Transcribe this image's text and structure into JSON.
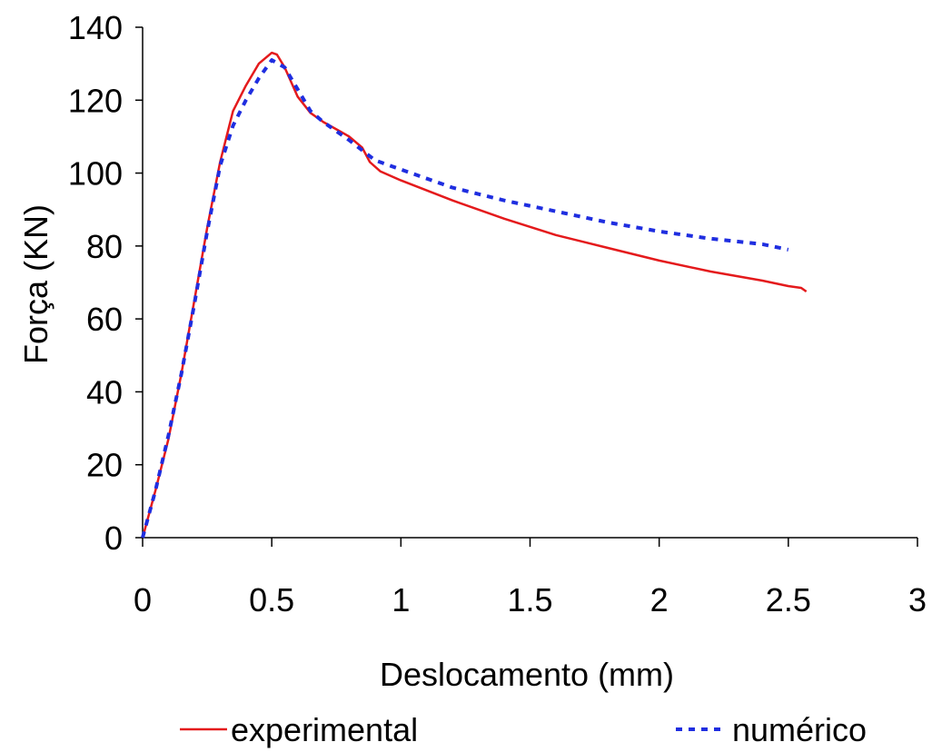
{
  "chart_data": {
    "type": "line",
    "title": "",
    "xlabel": "Deslocamento (mm)",
    "ylabel": "Força (KN)",
    "xlim": [
      0,
      3
    ],
    "ylim": [
      0,
      140
    ],
    "xticks": [
      0,
      0.5,
      1,
      1.5,
      2,
      2.5,
      3
    ],
    "yticks": [
      0,
      20,
      40,
      60,
      80,
      100,
      120,
      140
    ],
    "grid": false,
    "legend_position": "bottom",
    "series": [
      {
        "name": "experimental",
        "color": "#e41a1c",
        "style": "solid",
        "points": [
          [
            0,
            0
          ],
          [
            0.05,
            13
          ],
          [
            0.1,
            27
          ],
          [
            0.15,
            45
          ],
          [
            0.2,
            65
          ],
          [
            0.25,
            85
          ],
          [
            0.3,
            103
          ],
          [
            0.35,
            117
          ],
          [
            0.4,
            124
          ],
          [
            0.45,
            130
          ],
          [
            0.5,
            133
          ],
          [
            0.52,
            132.5
          ],
          [
            0.55,
            129
          ],
          [
            0.6,
            121
          ],
          [
            0.65,
            116.5
          ],
          [
            0.7,
            114
          ],
          [
            0.75,
            112
          ],
          [
            0.8,
            110
          ],
          [
            0.85,
            107
          ],
          [
            0.88,
            103
          ],
          [
            0.92,
            100.5
          ],
          [
            1.0,
            98
          ],
          [
            1.2,
            92.5
          ],
          [
            1.4,
            87.5
          ],
          [
            1.6,
            83
          ],
          [
            1.8,
            79.5
          ],
          [
            2.0,
            76
          ],
          [
            2.2,
            73
          ],
          [
            2.4,
            70.5
          ],
          [
            2.5,
            69
          ],
          [
            2.55,
            68.5
          ],
          [
            2.57,
            67.5
          ]
        ]
      },
      {
        "name": "numérico",
        "color": "#1f2ee0",
        "style": "dotted",
        "points": [
          [
            0,
            0
          ],
          [
            0.05,
            13
          ],
          [
            0.1,
            28
          ],
          [
            0.15,
            45
          ],
          [
            0.2,
            64
          ],
          [
            0.25,
            84
          ],
          [
            0.3,
            102
          ],
          [
            0.35,
            113
          ],
          [
            0.4,
            120
          ],
          [
            0.45,
            126
          ],
          [
            0.5,
            131
          ],
          [
            0.55,
            129
          ],
          [
            0.6,
            123
          ],
          [
            0.65,
            117
          ],
          [
            0.7,
            114
          ],
          [
            0.8,
            109
          ],
          [
            0.9,
            103.5
          ],
          [
            1.0,
            101
          ],
          [
            1.2,
            96
          ],
          [
            1.4,
            92.5
          ],
          [
            1.6,
            89.5
          ],
          [
            1.8,
            86.5
          ],
          [
            2.0,
            84
          ],
          [
            2.2,
            82
          ],
          [
            2.4,
            80.5
          ],
          [
            2.5,
            79
          ]
        ]
      }
    ]
  }
}
